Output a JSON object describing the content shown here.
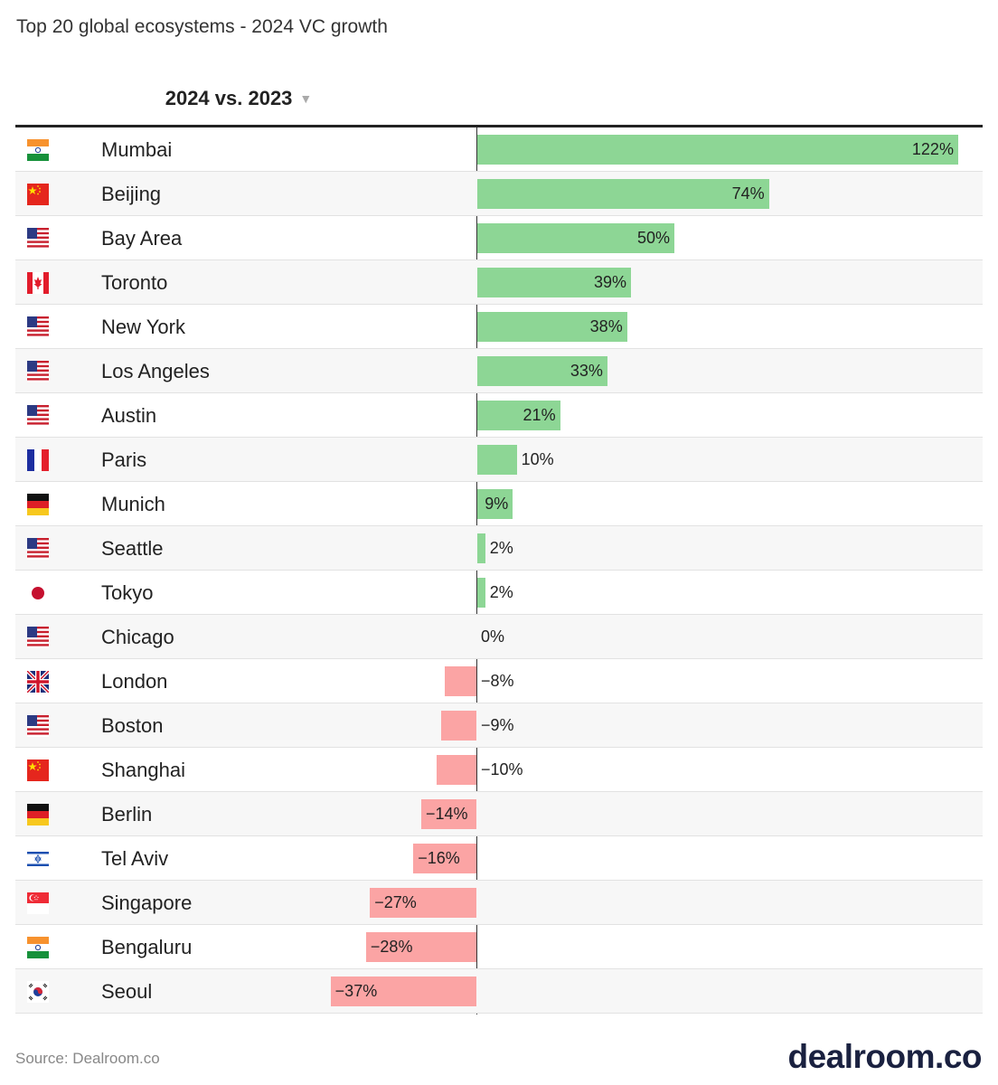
{
  "title": "Top 20 global ecosystems - 2024 VC growth",
  "column_header": "2024 vs. 2023",
  "source": "Source: Dealroom.co",
  "logo": "dealroom.co",
  "colors": {
    "positive": "#8dd695",
    "negative": "#fba4a4"
  },
  "chart_data": {
    "type": "bar",
    "orientation": "horizontal",
    "categories": [
      "Mumbai",
      "Beijing",
      "Bay Area",
      "Toronto",
      "New York",
      "Los Angeles",
      "Austin",
      "Paris",
      "Munich",
      "Seattle",
      "Tokyo",
      "Chicago",
      "London",
      "Boston",
      "Shanghai",
      "Berlin",
      "Tel Aviv",
      "Singapore",
      "Bengaluru",
      "Seoul"
    ],
    "flags": [
      "india",
      "china",
      "usa",
      "canada",
      "usa",
      "usa",
      "usa",
      "france",
      "germany",
      "usa",
      "japan",
      "usa",
      "uk",
      "usa",
      "china",
      "germany",
      "israel",
      "singapore",
      "india",
      "south-korea"
    ],
    "values": [
      122,
      74,
      50,
      39,
      38,
      33,
      21,
      10,
      9,
      2,
      2,
      0,
      -8,
      -9,
      -10,
      -14,
      -16,
      -27,
      -28,
      -37
    ],
    "labels": [
      "122%",
      "74%",
      "50%",
      "39%",
      "38%",
      "33%",
      "21%",
      "10%",
      "9%",
      "2%",
      "2%",
      "0%",
      "−8%",
      "−9%",
      "−10%",
      "−14%",
      "−16%",
      "−27%",
      "−28%",
      "−37%"
    ],
    "unit": "%"
  }
}
